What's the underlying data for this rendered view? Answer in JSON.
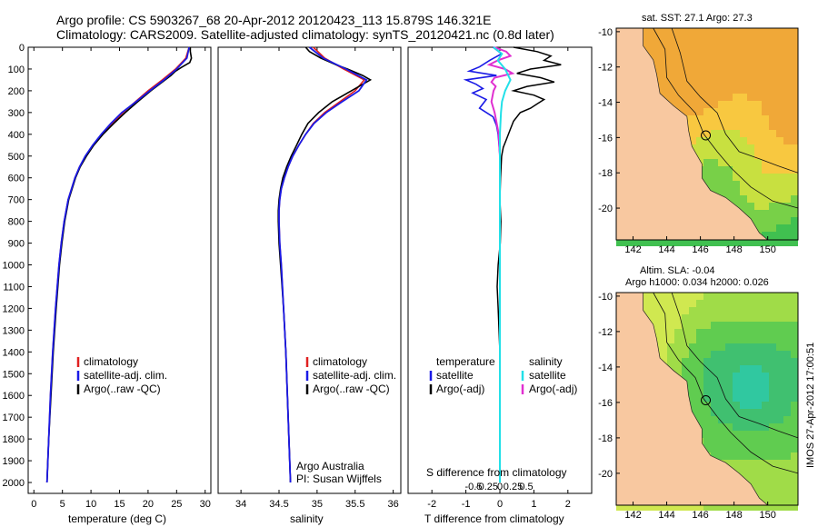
{
  "header": {
    "line1": "Argo profile: CS 5903267_68 20-Apr-2012 20120423_113 15.879S 146.321E",
    "line2": "Climatology: CARS2009. Satellite-adjusted climatology: synTS_20120421.nc (0.8d later)"
  },
  "credit": {
    "line1": "Argo Australia",
    "line2": "PI: Susan Wijffels"
  },
  "stamp": "IMOS 27-Apr-2012 17:00:51",
  "colors": {
    "clim": "#e02020",
    "sat": "#1a1ae6",
    "argo": "#000000",
    "sal_sat": "#22e0e8",
    "sal_argo": "#e030d0",
    "land": "#f8c8a0"
  },
  "chart_data": [
    {
      "type": "line",
      "name": "temperature profile",
      "xlabel": "temperature (deg C)",
      "ylabel": "depth",
      "xlim": [
        -1,
        31
      ],
      "ylim": [
        0,
        2050
      ],
      "xticks": [
        "0",
        "5",
        "10",
        "15",
        "20",
        "25",
        "30"
      ],
      "yticks": [
        "0",
        "100",
        "200",
        "300",
        "400",
        "500",
        "600",
        "700",
        "800",
        "900",
        "1000",
        "1100",
        "1200",
        "1300",
        "1400",
        "1500",
        "1600",
        "1700",
        "1800",
        "1900",
        "2000"
      ],
      "legend": [
        "climatology",
        "satellite-adj. clim.",
        "Argo(..raw -QC)"
      ],
      "series": [
        {
          "name": "climatology",
          "depth": [
            0,
            50,
            100,
            150,
            200,
            250,
            300,
            350,
            400,
            450,
            500,
            550,
            600,
            700,
            800,
            900,
            1000,
            1200,
            1400,
            1600,
            1800,
            2000
          ],
          "values": [
            27.2,
            26.6,
            24.8,
            22.5,
            20.0,
            17.8,
            15.6,
            13.8,
            12.0,
            10.4,
            9.1,
            8.0,
            7.2,
            6.0,
            5.3,
            4.8,
            4.4,
            3.8,
            3.3,
            2.9,
            2.6,
            2.3
          ]
        },
        {
          "name": "satellite-adj. clim.",
          "depth": [
            0,
            50,
            100,
            150,
            200,
            250,
            300,
            350,
            400,
            450,
            500,
            550,
            600,
            700,
            800,
            900,
            1000,
            1200,
            1400,
            1600,
            1800,
            2000
          ],
          "values": [
            27.2,
            26.8,
            25.0,
            22.8,
            20.3,
            17.9,
            15.4,
            13.5,
            11.8,
            10.3,
            9.0,
            8.0,
            7.2,
            6.0,
            5.3,
            4.8,
            4.4,
            3.8,
            3.3,
            2.9,
            2.6,
            2.3
          ]
        },
        {
          "name": "Argo",
          "depth": [
            0,
            20,
            50,
            70,
            90,
            110,
            130,
            150,
            200,
            250,
            300,
            350,
            400,
            450,
            500,
            550,
            600,
            700,
            800,
            900,
            1000,
            1200,
            1400,
            1600,
            1800,
            2000
          ],
          "values": [
            27.4,
            27.4,
            27.6,
            27.3,
            26.0,
            24.8,
            24.0,
            23.0,
            20.5,
            18.2,
            16.0,
            14.0,
            12.1,
            10.5,
            9.2,
            8.1,
            7.3,
            6.1,
            5.4,
            4.9,
            4.5,
            3.9,
            3.4,
            3.0,
            2.6,
            2.3
          ]
        }
      ]
    },
    {
      "type": "line",
      "name": "salinity profile",
      "xlabel": "salinity",
      "xlim": [
        33.7,
        36.1
      ],
      "ylim": [
        0,
        2050
      ],
      "xticks": [
        "34",
        "34.5",
        "35",
        "35.5",
        "36"
      ],
      "legend": [
        "climatology",
        "satellite-adj. clim.",
        "Argo(..raw -QC)"
      ],
      "series": [
        {
          "name": "climatology",
          "depth": [
            0,
            50,
            100,
            150,
            200,
            250,
            300,
            350,
            400,
            450,
            500,
            550,
            600,
            650,
            700,
            750,
            800,
            900,
            1000,
            1200,
            1400,
            1600,
            1800,
            2000
          ],
          "values": [
            34.95,
            35.1,
            35.35,
            35.62,
            35.5,
            35.3,
            35.1,
            34.95,
            34.85,
            34.76,
            34.68,
            34.62,
            34.57,
            34.53,
            34.51,
            34.5,
            34.5,
            34.51,
            34.53,
            34.56,
            34.59,
            34.61,
            34.63,
            34.65
          ]
        },
        {
          "name": "satellite-adj. clim.",
          "depth": [
            0,
            50,
            100,
            150,
            200,
            250,
            300,
            350,
            400,
            450,
            500,
            550,
            600,
            650,
            700,
            750,
            800,
            900,
            1000,
            1200,
            1400,
            1600,
            1800,
            2000
          ],
          "values": [
            34.9,
            35.08,
            35.38,
            35.65,
            35.55,
            35.33,
            35.12,
            34.96,
            34.85,
            34.76,
            34.68,
            34.62,
            34.57,
            34.53,
            34.51,
            34.5,
            34.5,
            34.51,
            34.53,
            34.56,
            34.59,
            34.61,
            34.63,
            34.65
          ]
        },
        {
          "name": "Argo",
          "depth": [
            0,
            20,
            50,
            80,
            100,
            130,
            150,
            200,
            250,
            300,
            350,
            400,
            450,
            500,
            550,
            600,
            650,
            700,
            750,
            800,
            900,
            1000,
            1200,
            1400,
            1600,
            1800,
            2000
          ],
          "values": [
            34.85,
            34.9,
            35.05,
            35.25,
            35.4,
            35.6,
            35.7,
            35.45,
            35.2,
            35.02,
            34.88,
            34.8,
            34.73,
            34.66,
            34.6,
            34.55,
            34.52,
            34.5,
            34.49,
            34.49,
            34.5,
            34.52,
            34.56,
            34.59,
            34.61,
            34.63,
            34.65
          ]
        }
      ]
    },
    {
      "type": "line",
      "name": "difference from climatology",
      "xlabel_bottom": "T difference from climatology",
      "xlabel_top": "S difference from climatology",
      "xlim": [
        -2.7,
        2.7
      ],
      "ylim": [
        0,
        2050
      ],
      "xticks_T": [
        "-2",
        "-1",
        "0",
        "1",
        "2"
      ],
      "xticks_S": [
        "-0.5",
        "-0.25",
        "0",
        "0.25",
        "0.5"
      ],
      "legend": {
        "temperature_heading": "temperature",
        "salinity_heading": "salinity",
        "satellite": "satellite",
        "argo": "Argo(-adj)"
      },
      "series": [
        {
          "name": "T satellite",
          "depth": [
            0,
            30,
            60,
            90,
            110,
            130,
            150,
            170,
            190,
            210,
            240,
            280,
            320,
            360,
            400,
            500,
            600,
            700,
            800,
            1000,
            1500,
            2000
          ],
          "values": [
            -0.2,
            0.05,
            -0.3,
            -0.6,
            -0.9,
            -0.1,
            -1.0,
            -0.7,
            -0.5,
            -0.8,
            -0.4,
            -0.6,
            -0.2,
            -0.1,
            -0.05,
            0,
            0,
            0,
            0,
            0,
            0,
            0
          ]
        },
        {
          "name": "T Argo",
          "depth": [
            0,
            20,
            40,
            60,
            80,
            100,
            120,
            140,
            160,
            180,
            200,
            220,
            240,
            260,
            280,
            300,
            340,
            380,
            420,
            460,
            500,
            600,
            700,
            800,
            900,
            1000,
            1100,
            1200,
            1400,
            1600,
            1800,
            2000
          ],
          "values": [
            0.4,
            1.1,
            1.5,
            1.3,
            1.8,
            0.9,
            0.5,
            1.2,
            1.6,
            0.8,
            0.4,
            1.0,
            1.3,
            1.1,
            0.9,
            0.6,
            0.4,
            0.3,
            0.2,
            0.1,
            0.05,
            0.02,
            0,
            0.03,
            0.01,
            -0.05,
            -0.08,
            -0.05,
            0,
            0,
            0,
            0
          ]
        },
        {
          "name": "S satellite",
          "depth": [
            0,
            30,
            60,
            100,
            150,
            200,
            250,
            300,
            400,
            500,
            700,
            1000,
            1500,
            2000
          ],
          "values": [
            -0.06,
            0.02,
            -0.02,
            0.05,
            0.1,
            0.05,
            0.02,
            0.01,
            0,
            0,
            0,
            0,
            0,
            0
          ]
        },
        {
          "name": "S Argo",
          "depth": [
            0,
            20,
            40,
            60,
            80,
            100,
            120,
            140,
            160,
            180,
            200,
            250,
            300,
            350,
            400,
            500,
            600,
            800,
            1000,
            1500,
            2000
          ],
          "values": [
            -0.05,
            0.06,
            0.1,
            -0.02,
            -0.1,
            0.05,
            0.12,
            -0.05,
            -0.08,
            -0.04,
            -0.06,
            -0.08,
            -0.05,
            -0.03,
            -0.01,
            0,
            0,
            0,
            0,
            0,
            0
          ]
        }
      ]
    },
    {
      "type": "heatmap",
      "name": "SST map",
      "title": "sat. SST: 27.1  Argo: 27.3",
      "xticks": [
        "142",
        "144",
        "146",
        "148",
        "150"
      ],
      "yticks": [
        "-10",
        "-12",
        "-14",
        "-16",
        "-18",
        "-20"
      ],
      "xlim": [
        141,
        151.8
      ],
      "ylim": [
        -21.8,
        -9.8
      ],
      "argo_position": [
        146.321,
        -15.879
      ]
    },
    {
      "type": "heatmap",
      "name": "SLA map",
      "title_line1": "Altim. SLA: -0.04",
      "title_line2": "Argo h1000: 0.034  h2000: 0.026",
      "xticks": [
        "142",
        "144",
        "146",
        "148",
        "150"
      ],
      "yticks": [
        "-10",
        "-12",
        "-14",
        "-16",
        "-18",
        "-20"
      ],
      "xlim": [
        141,
        151.8
      ],
      "ylim": [
        -21.8,
        -9.8
      ],
      "argo_position": [
        146.321,
        -15.879
      ]
    }
  ]
}
